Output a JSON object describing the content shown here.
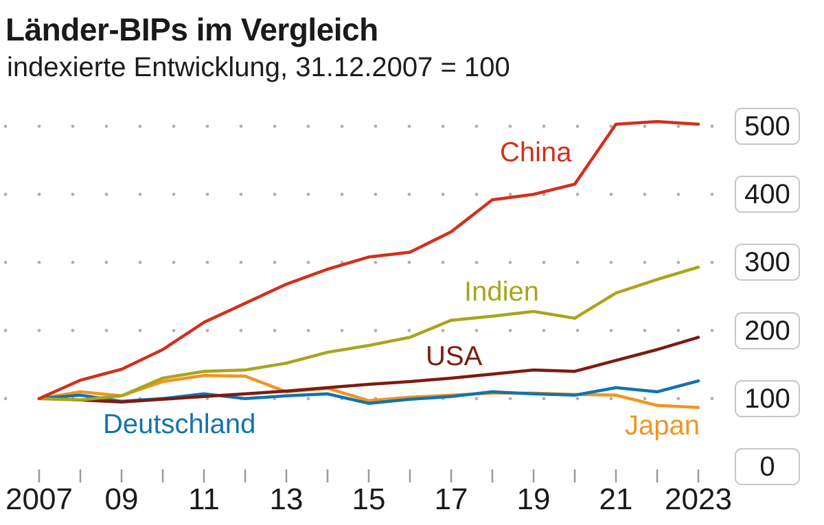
{
  "header": {
    "title": "Länder-BIPs im Vergleich",
    "subtitle": "indexierte Entwicklung, 31.12.2007 = 100"
  },
  "chart_data": {
    "type": "line",
    "title": "Länder-BIPs im Vergleich",
    "subtitle": "indexierte Entwicklung, 31.12.2007 = 100",
    "baseline_note": "31.12.2007 = 100",
    "x": [
      2007,
      2008,
      2009,
      2010,
      2011,
      2012,
      2013,
      2014,
      2015,
      2016,
      2017,
      2018,
      2019,
      2020,
      2021,
      2022,
      2023
    ],
    "x_axis": {
      "ticks": [
        {
          "label": "2007",
          "year": 2007
        },
        {
          "label": "09",
          "year": 2009
        },
        {
          "label": "11",
          "year": 2011
        },
        {
          "label": "13",
          "year": 2013
        },
        {
          "label": "15",
          "year": 2015
        },
        {
          "label": "17",
          "year": 2017
        },
        {
          "label": "19",
          "year": 2019
        },
        {
          "label": "21",
          "year": 2021
        },
        {
          "label": "2023",
          "year": 2023
        }
      ]
    },
    "y_ticks": [
      0,
      100,
      200,
      300,
      400,
      500
    ],
    "ylim": [
      0,
      500
    ],
    "grid": "dotted",
    "legend_position": "inline-labels",
    "series": [
      {
        "name": "China",
        "color": "#d2301c",
        "values": [
          100,
          127,
          143,
          172,
          212,
          240,
          268,
          290,
          308,
          315,
          345,
          392,
          400,
          415,
          503,
          507,
          503
        ]
      },
      {
        "name": "Indien",
        "color": "#a9a51c",
        "values": [
          100,
          98,
          104,
          130,
          140,
          142,
          152,
          168,
          178,
          190,
          215,
          221,
          228,
          218,
          255,
          275,
          293
        ]
      },
      {
        "name": "USA",
        "color": "#7d1b10",
        "values": [
          100,
          98,
          95,
          99,
          103,
          107,
          111,
          116,
          121,
          125,
          130,
          136,
          142,
          140,
          156,
          172,
          190
        ]
      },
      {
        "name": "Deutschland",
        "color": "#1273ae",
        "values": [
          100,
          105,
          96,
          100,
          107,
          100,
          104,
          107,
          93,
          99,
          103,
          110,
          107,
          105,
          116,
          110,
          126
        ]
      },
      {
        "name": "Japan",
        "color": "#f29422",
        "values": [
          100,
          110,
          104,
          125,
          134,
          133,
          110,
          115,
          97,
          102,
          105,
          108,
          108,
          106,
          105,
          90,
          87
        ]
      }
    ]
  }
}
